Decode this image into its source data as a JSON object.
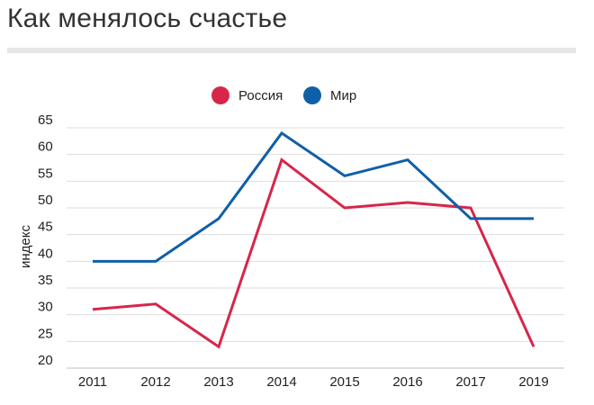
{
  "title": "Как менялось счастье",
  "chart_data": {
    "type": "line",
    "title": "Как менялось счастье",
    "xlabel": "",
    "ylabel": "индекс",
    "categories": [
      "2011",
      "2012",
      "2013",
      "2014",
      "2015",
      "2016",
      "2017",
      "2019"
    ],
    "ylim": [
      20,
      65
    ],
    "yticks": [
      20,
      25,
      30,
      35,
      40,
      45,
      50,
      55,
      60,
      65
    ],
    "grid": true,
    "legend_position": "top-center",
    "series": [
      {
        "name": "Россия",
        "color": "#d7264a",
        "values": [
          31,
          32,
          24,
          59,
          50,
          51,
          50,
          24
        ]
      },
      {
        "name": "Мир",
        "color": "#0f5fa8",
        "values": [
          40,
          40,
          48,
          64,
          56,
          59,
          48,
          48
        ]
      }
    ]
  }
}
